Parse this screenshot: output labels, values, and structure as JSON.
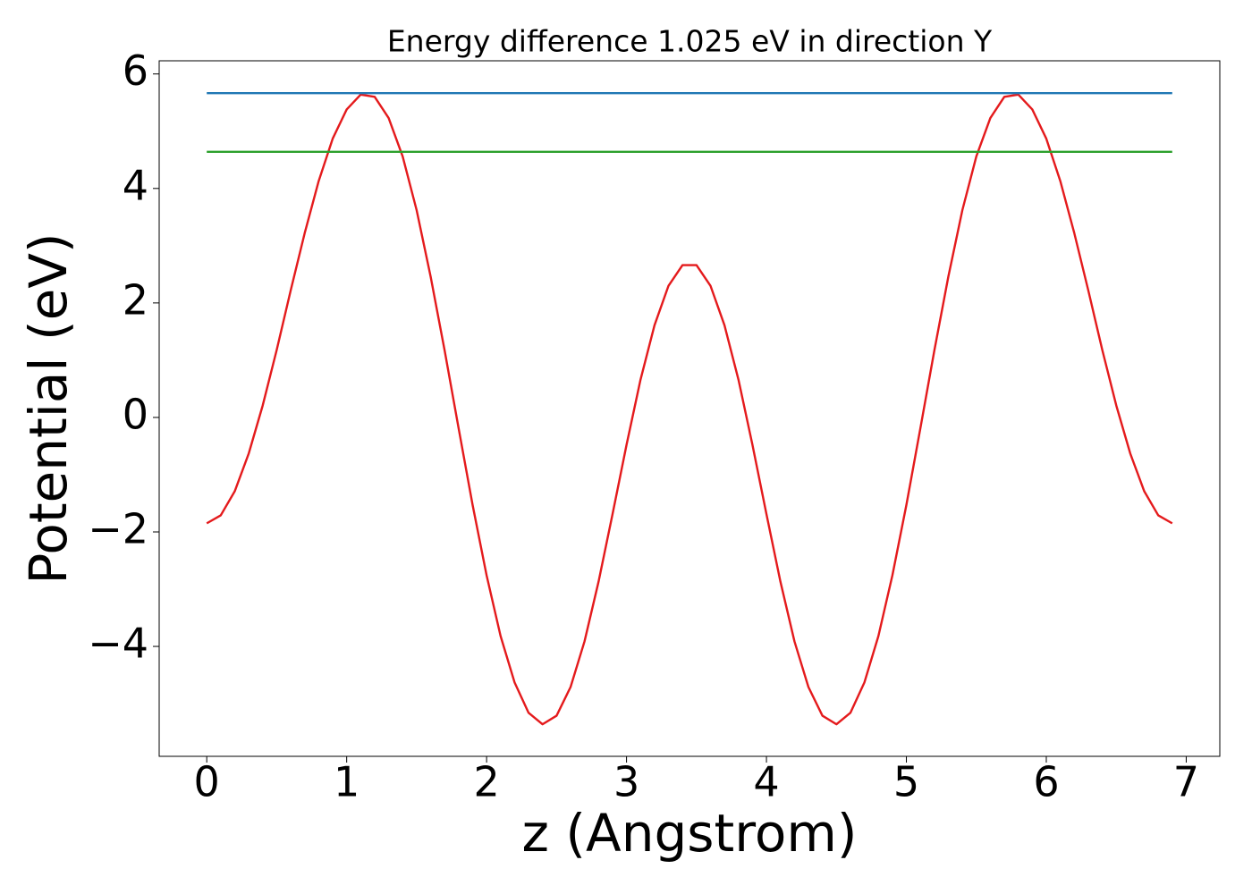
{
  "chart_data": {
    "type": "line",
    "title": "Energy difference 1.025 eV in direction Y",
    "xlabel": "z (Angstrom)",
    "ylabel": "Potential (eV)",
    "xlim": [
      -0.34,
      7.24
    ],
    "ylim": [
      -5.92,
      6.23
    ],
    "xticks": [
      0,
      1,
      2,
      3,
      4,
      5,
      6,
      7
    ],
    "yticks": [
      {
        "value": -4,
        "label": "−4"
      },
      {
        "value": -2,
        "label": "−2"
      },
      0,
      2,
      4,
      6
    ],
    "series": [
      {
        "color": "#e41a1c",
        "x": [
          0,
          0.1,
          0.2,
          0.3,
          0.4,
          0.5,
          0.6,
          0.7,
          0.8,
          0.9,
          1,
          1.1,
          1.2,
          1.3,
          1.4,
          1.5,
          1.6,
          1.7,
          1.8,
          1.9,
          2,
          2.1,
          2.2,
          2.3,
          2.4,
          2.5,
          2.6,
          2.7,
          2.8,
          2.9,
          3,
          3.1,
          3.2,
          3.3,
          3.4,
          3.5,
          3.6,
          3.7,
          3.8,
          3.9,
          4,
          4.1,
          4.2,
          4.3,
          4.4,
          4.5,
          4.6,
          4.7,
          4.8,
          4.9,
          5,
          5.1,
          5.2,
          5.3,
          5.4,
          5.5,
          5.6,
          5.7,
          5.8,
          5.9,
          6,
          6.1,
          6.2,
          6.3,
          6.4,
          6.5,
          6.6,
          6.7,
          6.8,
          6.9
        ],
        "values": [
          -1.85,
          -1.71,
          -1.29,
          -0.63,
          0.21,
          1.18,
          2.22,
          3.22,
          4.13,
          4.87,
          5.38,
          5.64,
          5.6,
          5.23,
          4.56,
          3.62,
          2.46,
          1.17,
          -0.19,
          -1.53,
          -2.76,
          -3.82,
          -4.63,
          -5.16,
          -5.36,
          -5.21,
          -4.71,
          -3.91,
          -2.87,
          -1.69,
          -0.48,
          0.66,
          1.61,
          2.3,
          2.66,
          2.66,
          2.3,
          1.61,
          0.66,
          -0.48,
          -1.69,
          -2.87,
          -3.91,
          -4.71,
          -5.21,
          -5.36,
          -5.16,
          -4.63,
          -3.82,
          -2.76,
          -1.53,
          -0.19,
          1.17,
          2.46,
          3.62,
          4.56,
          5.23,
          5.6,
          5.64,
          5.38,
          4.87,
          4.13,
          3.22,
          2.22,
          1.18,
          0.21,
          -0.63,
          -1.29,
          -1.71,
          -1.85
        ]
      },
      {
        "color": "#1f77b4",
        "x": [
          0,
          6.9
        ],
        "values": [
          5.665,
          5.665
        ]
      },
      {
        "color": "#2ca02c",
        "x": [
          0,
          6.9
        ],
        "values": [
          4.64,
          4.64
        ]
      }
    ]
  }
}
